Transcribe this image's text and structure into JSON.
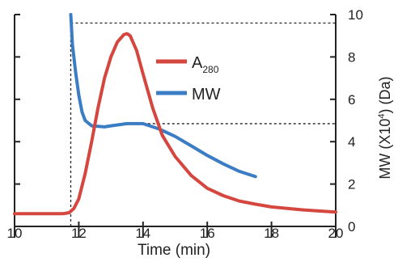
{
  "chart_data": {
    "type": "line",
    "xlabel": "Time (min)",
    "x_ticks": [
      "10",
      "12",
      "14",
      "16",
      "18",
      "20"
    ],
    "xlim": [
      10,
      20
    ],
    "y_right_ticks": [
      "0",
      "2",
      "4",
      "6",
      "8",
      "10"
    ],
    "y_right_label": {
      "prefix": "MW (X10",
      "superscript": "4",
      "suffix": ") (Da)"
    },
    "ylim_right": [
      0,
      10
    ],
    "y_left_unlabeled": true,
    "ylim_left": [
      0,
      10
    ],
    "legend": {
      "placement": "top-center",
      "items": [
        {
          "series": "a280",
          "label_main": "A",
          "label_sub": "280"
        },
        {
          "series": "mw",
          "label_main": "MW",
          "label_sub": ""
        }
      ]
    },
    "series": [
      {
        "key": "a280",
        "axis": "left",
        "color": "#d4463e",
        "points": [
          [
            10.0,
            0.6
          ],
          [
            11.5,
            0.6
          ],
          [
            11.7,
            0.65
          ],
          [
            11.85,
            0.85
          ],
          [
            12.0,
            1.3
          ],
          [
            12.2,
            2.5
          ],
          [
            12.4,
            4.0
          ],
          [
            12.6,
            5.6
          ],
          [
            12.8,
            7.0
          ],
          [
            13.0,
            8.0
          ],
          [
            13.2,
            8.7
          ],
          [
            13.4,
            9.05
          ],
          [
            13.5,
            9.1
          ],
          [
            13.6,
            9.0
          ],
          [
            13.8,
            8.3
          ],
          [
            14.0,
            7.2
          ],
          [
            14.3,
            5.6
          ],
          [
            14.6,
            4.3
          ],
          [
            15.0,
            3.3
          ],
          [
            15.5,
            2.4
          ],
          [
            16.0,
            1.8
          ],
          [
            16.5,
            1.45
          ],
          [
            17.0,
            1.2
          ],
          [
            17.5,
            1.05
          ],
          [
            18.0,
            0.92
          ],
          [
            19.0,
            0.78
          ],
          [
            20.0,
            0.68
          ]
        ]
      },
      {
        "key": "mw",
        "axis": "right",
        "color": "#3b7dc4",
        "points": [
          [
            11.75,
            10.0
          ],
          [
            11.8,
            8.6
          ],
          [
            11.9,
            7.3
          ],
          [
            12.0,
            6.2
          ],
          [
            12.1,
            5.4
          ],
          [
            12.2,
            5.0
          ],
          [
            12.4,
            4.75
          ],
          [
            12.8,
            4.7
          ],
          [
            13.0,
            4.75
          ],
          [
            13.5,
            4.85
          ],
          [
            14.0,
            4.85
          ],
          [
            14.5,
            4.6
          ],
          [
            15.0,
            4.25
          ],
          [
            15.5,
            3.8
          ],
          [
            16.0,
            3.35
          ],
          [
            16.5,
            2.95
          ],
          [
            17.0,
            2.6
          ],
          [
            17.5,
            2.35
          ]
        ]
      }
    ],
    "reference_lines": [
      {
        "orientation": "horizontal",
        "axis": "right",
        "y": 9.6,
        "x_from": 11.75,
        "x_to": 20.0
      },
      {
        "orientation": "horizontal",
        "axis": "right",
        "y": 4.85,
        "x_from": 14.0,
        "x_to": 20.0
      },
      {
        "orientation": "vertical",
        "x": 11.75,
        "y_from": 0.0,
        "y_to": 10.0
      }
    ]
  }
}
